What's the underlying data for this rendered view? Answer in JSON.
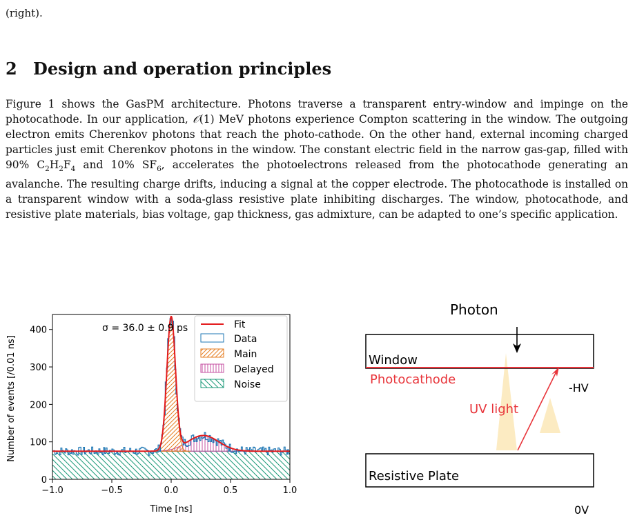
{
  "page": {
    "top_fragment": "(right).",
    "section": {
      "number": "2",
      "title": "Design and operation principles"
    },
    "paragraph": {
      "p1": "Figure 1 shows the GasPM architecture. Photons traverse a transparent entry-window and impinge on the photocathode. In our application, ",
      "o_symbol": "𝒪",
      "p2": "(1) MeV photons experience Compton scattering in the window. The outgoing electron emits Cherenkov photons that reach the photo-cathode. On the other hand, external incoming charged particles just emit Cherenkov photons in the window. The constant electric field in the narrow gas-gap, filled with 90% C",
      "sub_2a": "2",
      "h": "H",
      "sub_2b": "2",
      "f": "F",
      "sub_4": "4",
      "p3": " and 10% SF",
      "sub_6": "6",
      "p4": ", accelerates the photoelectrons released from the photocathode generating an avalanche. The resulting charge drifts, inducing a signal at the copper electrode. The photocathode is installed on a transparent window with a soda-glass resistive plate inhibiting discharges. The window, photocathode, and resistive plate materials, bias voltage, gap thickness, gas admixture, can be adapted to one’s specific application."
    }
  },
  "chart_data": {
    "type": "histogram",
    "xlabel": "Time [ns]",
    "ylabel": "Number of events [/0.01 ns]",
    "xlim": [
      -1.0,
      1.0
    ],
    "ylim": [
      0,
      440
    ],
    "xticks": [
      "−1.0",
      "−0.5",
      "0.0",
      "0.5",
      "1.0"
    ],
    "yticks": [
      "0",
      "100",
      "200",
      "300",
      "400"
    ],
    "annotation": "σ = 36.0 ± 0.9 ps",
    "legend": {
      "placement": "top-right",
      "entries": [
        "Fit",
        "Data",
        "Main",
        "Delayed",
        "Noise"
      ]
    },
    "colors": {
      "fit": "#e31a1c",
      "data": "#1f77b4",
      "main": "#e67e22",
      "delayed": "#c44fa0",
      "noise": "#1a9978"
    },
    "components": {
      "noise_level": 75,
      "main": {
        "mean": 0.0,
        "sigma": 0.036,
        "amplitude": 355
      },
      "delayed": {
        "mean": 0.27,
        "sigma": 0.13,
        "amplitude": 42
      }
    },
    "bin_width": 0.01
  },
  "diagram": {
    "photon_label": "Photon",
    "window_label": "Window",
    "photocathode_label": "Photocathode",
    "hv_label": "-HV",
    "uv_label": "UV light",
    "plate_label": "Resistive Plate",
    "zero_label": "0V",
    "colors": {
      "photocathode": "#e8343a",
      "uv_cone": "#fcebc2",
      "line": "#000000"
    }
  }
}
